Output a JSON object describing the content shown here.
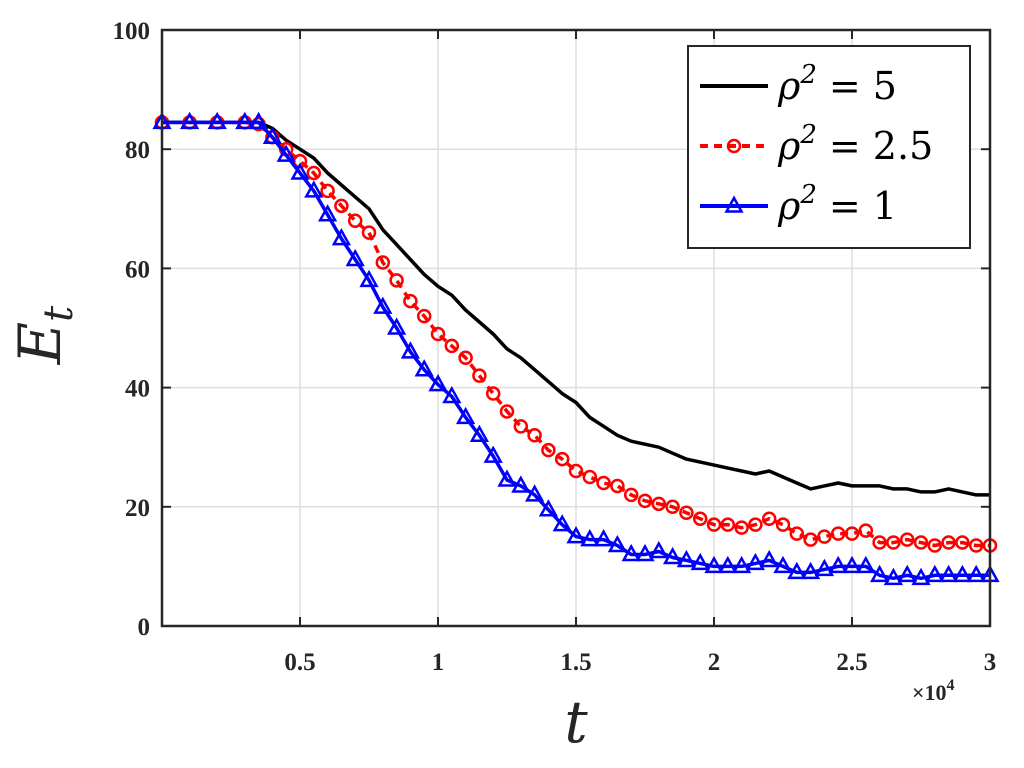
{
  "chart_data": {
    "type": "line",
    "xlabel": "t",
    "ylabel": "E",
    "ylabel_subscript": "t",
    "x_multiplier_base": "×10",
    "x_multiplier_exp": "4",
    "xlim": [
      0,
      30000
    ],
    "ylim": [
      0,
      100
    ],
    "grid": true,
    "legend_position": "top-right",
    "x_ticks": [
      5000,
      10000,
      15000,
      20000,
      25000,
      30000
    ],
    "x_tick_labels": [
      "0.5",
      "1",
      "1.5",
      "2",
      "2.5",
      "3"
    ],
    "y_ticks": [
      0,
      20,
      40,
      60,
      80,
      100
    ],
    "y_tick_labels": [
      "0",
      "20",
      "40",
      "60",
      "80",
      "100"
    ],
    "series": [
      {
        "name": "ρ² = 5",
        "legend_lhs": "ρ",
        "legend_sup": "2",
        "legend_rhs": "= 5",
        "color": "#000000",
        "dash": "",
        "marker": "none",
        "x": [
          0,
          1000,
          2000,
          3000,
          3500,
          4000,
          4500,
          5000,
          5500,
          6000,
          6500,
          7000,
          7500,
          8000,
          8500,
          9000,
          9500,
          10000,
          10500,
          11000,
          11500,
          12000,
          12500,
          13000,
          13500,
          14000,
          14500,
          15000,
          15500,
          16000,
          16500,
          17000,
          17500,
          18000,
          18500,
          19000,
          19500,
          20000,
          20500,
          21000,
          21500,
          22000,
          22500,
          23000,
          23500,
          24000,
          24500,
          25000,
          25500,
          26000,
          26500,
          27000,
          27500,
          28000,
          28500,
          29000,
          29500,
          30000
        ],
        "y": [
          84.5,
          84.5,
          84.5,
          84.5,
          84.5,
          83.5,
          81.5,
          80,
          78.5,
          76,
          74,
          72,
          70,
          66.5,
          64,
          61.5,
          59,
          57,
          55.5,
          53,
          51,
          49,
          46.5,
          45,
          43,
          41,
          39,
          37.5,
          35,
          33.5,
          32,
          31,
          30.5,
          30,
          29,
          28,
          27.5,
          27,
          26.5,
          26,
          25.5,
          26,
          25,
          24,
          23,
          23.5,
          24,
          23.5,
          23.5,
          23.5,
          23,
          23,
          22.5,
          22.5,
          23,
          22.5,
          22,
          22
        ]
      },
      {
        "name": "ρ² = 2.5",
        "legend_lhs": "ρ",
        "legend_sup": "2",
        "legend_rhs": "= 2.5",
        "color": "#ff0000",
        "dash": "8,6",
        "marker": "circle",
        "x": [
          0,
          1000,
          2000,
          3000,
          3500,
          4000,
          4500,
          5000,
          5500,
          6000,
          6500,
          7000,
          7500,
          8000,
          8500,
          9000,
          9500,
          10000,
          10500,
          11000,
          11500,
          12000,
          12500,
          13000,
          13500,
          14000,
          14500,
          15000,
          15500,
          16000,
          16500,
          17000,
          17500,
          18000,
          18500,
          19000,
          19500,
          20000,
          20500,
          21000,
          21500,
          22000,
          22500,
          23000,
          23500,
          24000,
          24500,
          25000,
          25500,
          26000,
          26500,
          27000,
          27500,
          28000,
          28500,
          29000,
          29500,
          30000
        ],
        "y": [
          84.5,
          84.5,
          84.5,
          84.5,
          84.2,
          82,
          80,
          78,
          76,
          73,
          70.5,
          68,
          66,
          61,
          58,
          54.5,
          52,
          49,
          47,
          45,
          42,
          39,
          36,
          33.5,
          32,
          29.5,
          28,
          26,
          25,
          24,
          23.5,
          22,
          21,
          20.5,
          20,
          19,
          18,
          17,
          17,
          16.5,
          17,
          18,
          17,
          15.5,
          14.5,
          15,
          15.5,
          15.5,
          16,
          14,
          14,
          14.5,
          14,
          13.5,
          14,
          14,
          13.5,
          13.5
        ]
      },
      {
        "name": "ρ² = 1",
        "legend_lhs": "ρ",
        "legend_sup": "2",
        "legend_rhs": "= 1",
        "color": "#0000ff",
        "dash": "",
        "marker": "triangle",
        "x": [
          0,
          1000,
          2000,
          3000,
          3500,
          4000,
          4500,
          5000,
          5500,
          6000,
          6500,
          7000,
          7500,
          8000,
          8500,
          9000,
          9500,
          10000,
          10500,
          11000,
          11500,
          12000,
          12500,
          13000,
          13500,
          14000,
          14500,
          15000,
          15500,
          16000,
          16500,
          17000,
          17500,
          18000,
          18500,
          19000,
          19500,
          20000,
          20500,
          21000,
          21500,
          22000,
          22500,
          23000,
          23500,
          24000,
          24500,
          25000,
          25500,
          26000,
          26500,
          27000,
          27500,
          28000,
          28500,
          29000,
          29500,
          30000
        ],
        "y": [
          84.5,
          84.5,
          84.5,
          84.5,
          84.5,
          82,
          79,
          76,
          73,
          69,
          65,
          61.5,
          58,
          53.5,
          50,
          46,
          43,
          40.5,
          38.5,
          35,
          32,
          28.5,
          24.5,
          23.5,
          22,
          19.5,
          17,
          15,
          14.5,
          14.5,
          13.5,
          12,
          12,
          12.5,
          11.5,
          11,
          10.5,
          10,
          10,
          10,
          10.5,
          11,
          10,
          9,
          9,
          9.5,
          10,
          10,
          10,
          8.5,
          8,
          8.5,
          8,
          8.5,
          8.5,
          8.5,
          8.5,
          8.5
        ]
      }
    ]
  }
}
